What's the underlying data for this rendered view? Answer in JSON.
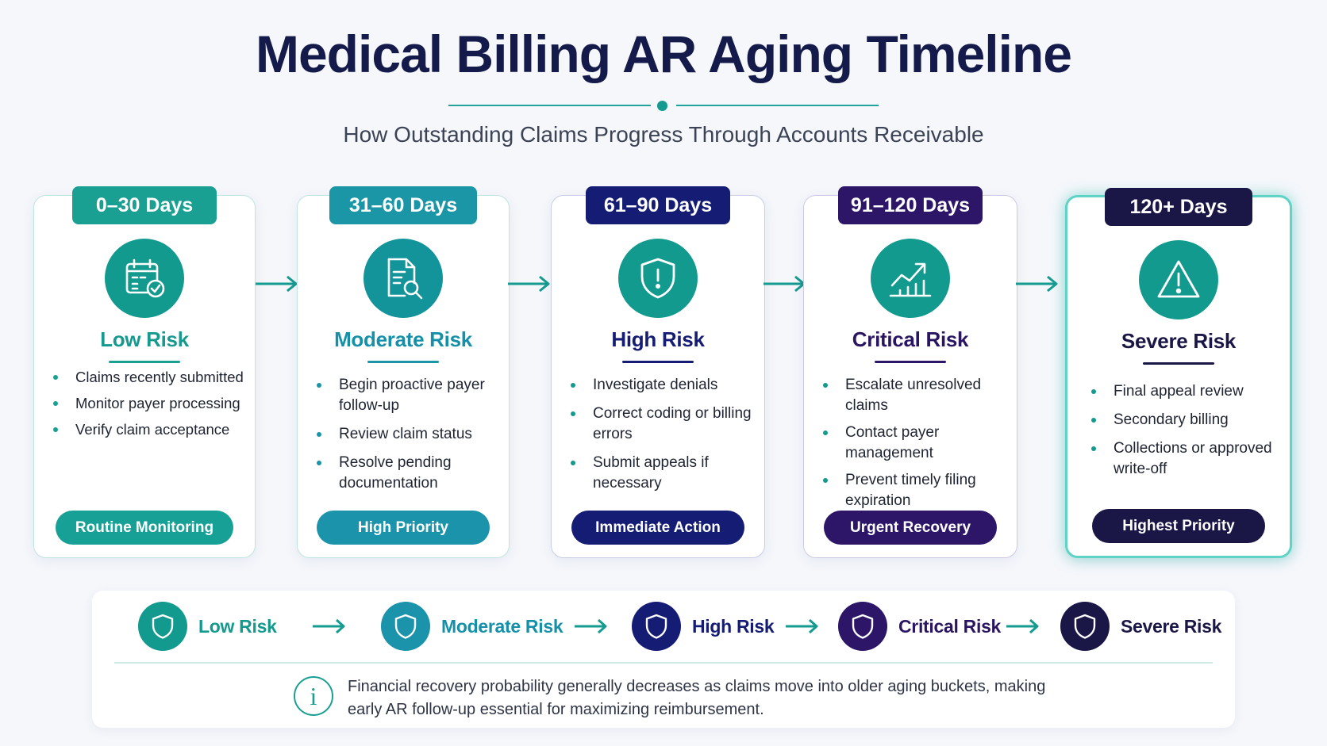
{
  "title": "Medical Billing AR Aging Timeline",
  "subtitle": "How Outstanding Claims Progress Through Accounts Receivable",
  "colors": {
    "teal": "#129a8e",
    "teal_blue": "#1a93ab",
    "navy": "#141c74",
    "deep_purple": "#2d1668",
    "darkest": "#1a1646",
    "glow": "#5fd3c5"
  },
  "stages": [
    {
      "days": "0–30 Days",
      "risk": "Low Risk",
      "icon": "calendar-check-icon",
      "bullets": [
        "Claims recently submitted",
        "Monitor payer processing",
        "Verify claim acceptance"
      ],
      "action": "Routine Monitoring"
    },
    {
      "days": "31–60 Days",
      "risk": "Moderate Risk",
      "icon": "document-search-icon",
      "bullets": [
        "Begin proactive payer follow-up",
        "Review claim status",
        "Resolve pending documentation"
      ],
      "action": "High Priority"
    },
    {
      "days": "61–90 Days",
      "risk": "High Risk",
      "icon": "shield-alert-icon",
      "bullets": [
        "Investigate denials",
        "Correct coding or billing errors",
        "Submit appeals if necessary"
      ],
      "action": "Immediate Action"
    },
    {
      "days": "91–120 Days",
      "risk": "Critical Risk",
      "icon": "trend-chart-icon",
      "bullets": [
        "Escalate unresolved claims",
        "Contact payer management",
        "Prevent timely filing expiration"
      ],
      "action": "Urgent Recovery"
    },
    {
      "days": "120+ Days",
      "risk": "Severe Risk",
      "icon": "warning-triangle-icon",
      "bullets": [
        "Final appeal review",
        "Secondary billing",
        "Collections or approved write-off"
      ],
      "action": "Highest Priority"
    }
  ],
  "legend": {
    "items": [
      "Low Risk",
      "Moderate Risk",
      "High Risk",
      "Critical Risk",
      "Severe Risk"
    ],
    "note": "Financial recovery probability generally decreases as claims move into older aging buckets, making early AR follow-up essential for maximizing reimbursement."
  }
}
